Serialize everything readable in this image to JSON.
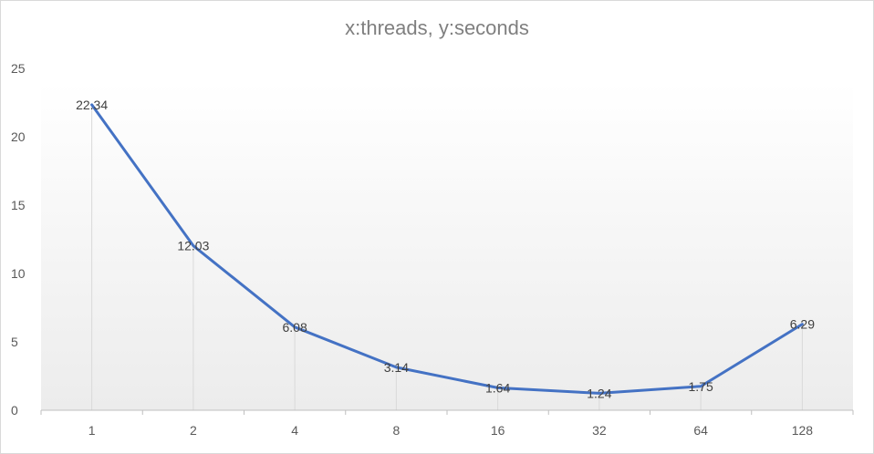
{
  "chart_data": {
    "type": "line",
    "title": "x:threads, y:seconds",
    "xlabel": "",
    "ylabel": "",
    "categories": [
      "1",
      "2",
      "4",
      "8",
      "16",
      "32",
      "64",
      "128"
    ],
    "series": [
      {
        "values": [
          22.34,
          12.03,
          6.08,
          3.14,
          1.64,
          1.24,
          1.75,
          6.29
        ],
        "labels": [
          "22.34",
          "12.03",
          "6.08",
          "3.14",
          "1.64",
          "1.24",
          "1.75",
          "6.29"
        ],
        "color": "#4472c4"
      }
    ],
    "ylim": [
      0,
      25
    ],
    "yticks": [
      "0",
      "5",
      "10",
      "15",
      "20",
      "25"
    ],
    "grid": false,
    "drop_lines": true,
    "legend": "none"
  }
}
